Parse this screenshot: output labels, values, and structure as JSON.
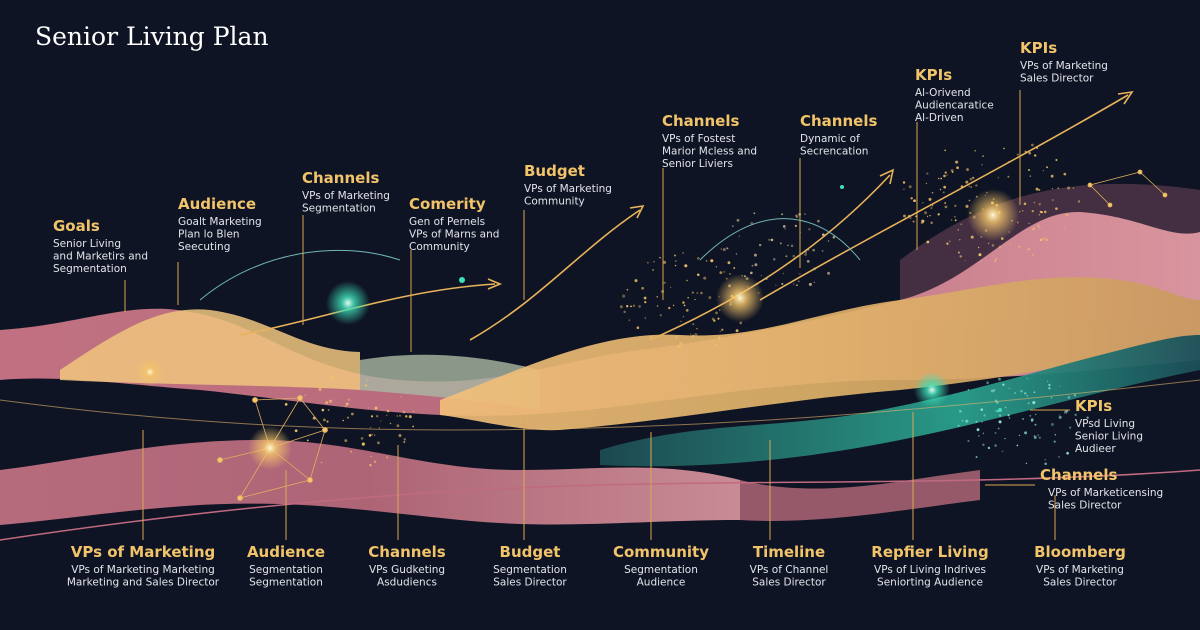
{
  "title": "Senior Living Plan",
  "top_labels": [
    {
      "heading": "Goals",
      "lines": [
        "Senior Living",
        "and Marketirs and",
        "Segmentation"
      ]
    },
    {
      "heading": "Audience",
      "lines": [
        "Goalt Marketing",
        "Plan lo Blen",
        "Seecuting"
      ]
    },
    {
      "heading": "Channels",
      "lines": [
        "VPs of Marketing",
        "Segmentation"
      ]
    },
    {
      "heading": "Comerity",
      "lines": [
        "Gen of Pernels",
        "VPs of Marns and",
        "Community"
      ]
    },
    {
      "heading": "Budget",
      "lines": [
        "VPs of Marketing",
        "Community"
      ]
    },
    {
      "heading": "Channels",
      "lines": [
        "VPs of Fostest",
        "Marior Mcless and",
        "Senior Liviers"
      ]
    },
    {
      "heading": "Channels",
      "lines": [
        "Dynamic of",
        "Secrencation"
      ]
    },
    {
      "heading": "KPIs",
      "lines": [
        "Al-Orivend",
        "Audiencaratice",
        "Al-Driven"
      ]
    },
    {
      "heading": "KPIs",
      "lines": [
        "VPs of Marketing",
        "Sales Director"
      ]
    }
  ],
  "right_labels": [
    {
      "heading": "KPIs",
      "lines": [
        "VPsd Living",
        "Senior Living",
        "Audieer"
      ]
    },
    {
      "heading": "Channels",
      "lines": [
        "VPs of Marketicensing",
        "Sales Director"
      ]
    }
  ],
  "bottom_labels": [
    {
      "heading": "VPs of Marketing",
      "lines": [
        "VPs of Marketing Marketing",
        "Marketing and Sales Director"
      ]
    },
    {
      "heading": "Audience",
      "lines": [
        "Segmentation",
        "Segmentation"
      ]
    },
    {
      "heading": "Channels",
      "lines": [
        "VPs Gudketing",
        "Asdudiencs"
      ]
    },
    {
      "heading": "Budget",
      "lines": [
        "Segmentation",
        "Sales Director"
      ]
    },
    {
      "heading": "Community",
      "lines": [
        "Segmentation",
        "Audience"
      ]
    },
    {
      "heading": "Timeline",
      "lines": [
        "VPs of Channel",
        "Sales Director"
      ]
    },
    {
      "heading": "Repfier Living",
      "lines": [
        "VPs of Living Indrives",
        "Seniorting Audience"
      ]
    },
    {
      "heading": "Bloomberg",
      "lines": [
        "VPs of Marketing",
        "Sales Director"
      ]
    }
  ]
}
